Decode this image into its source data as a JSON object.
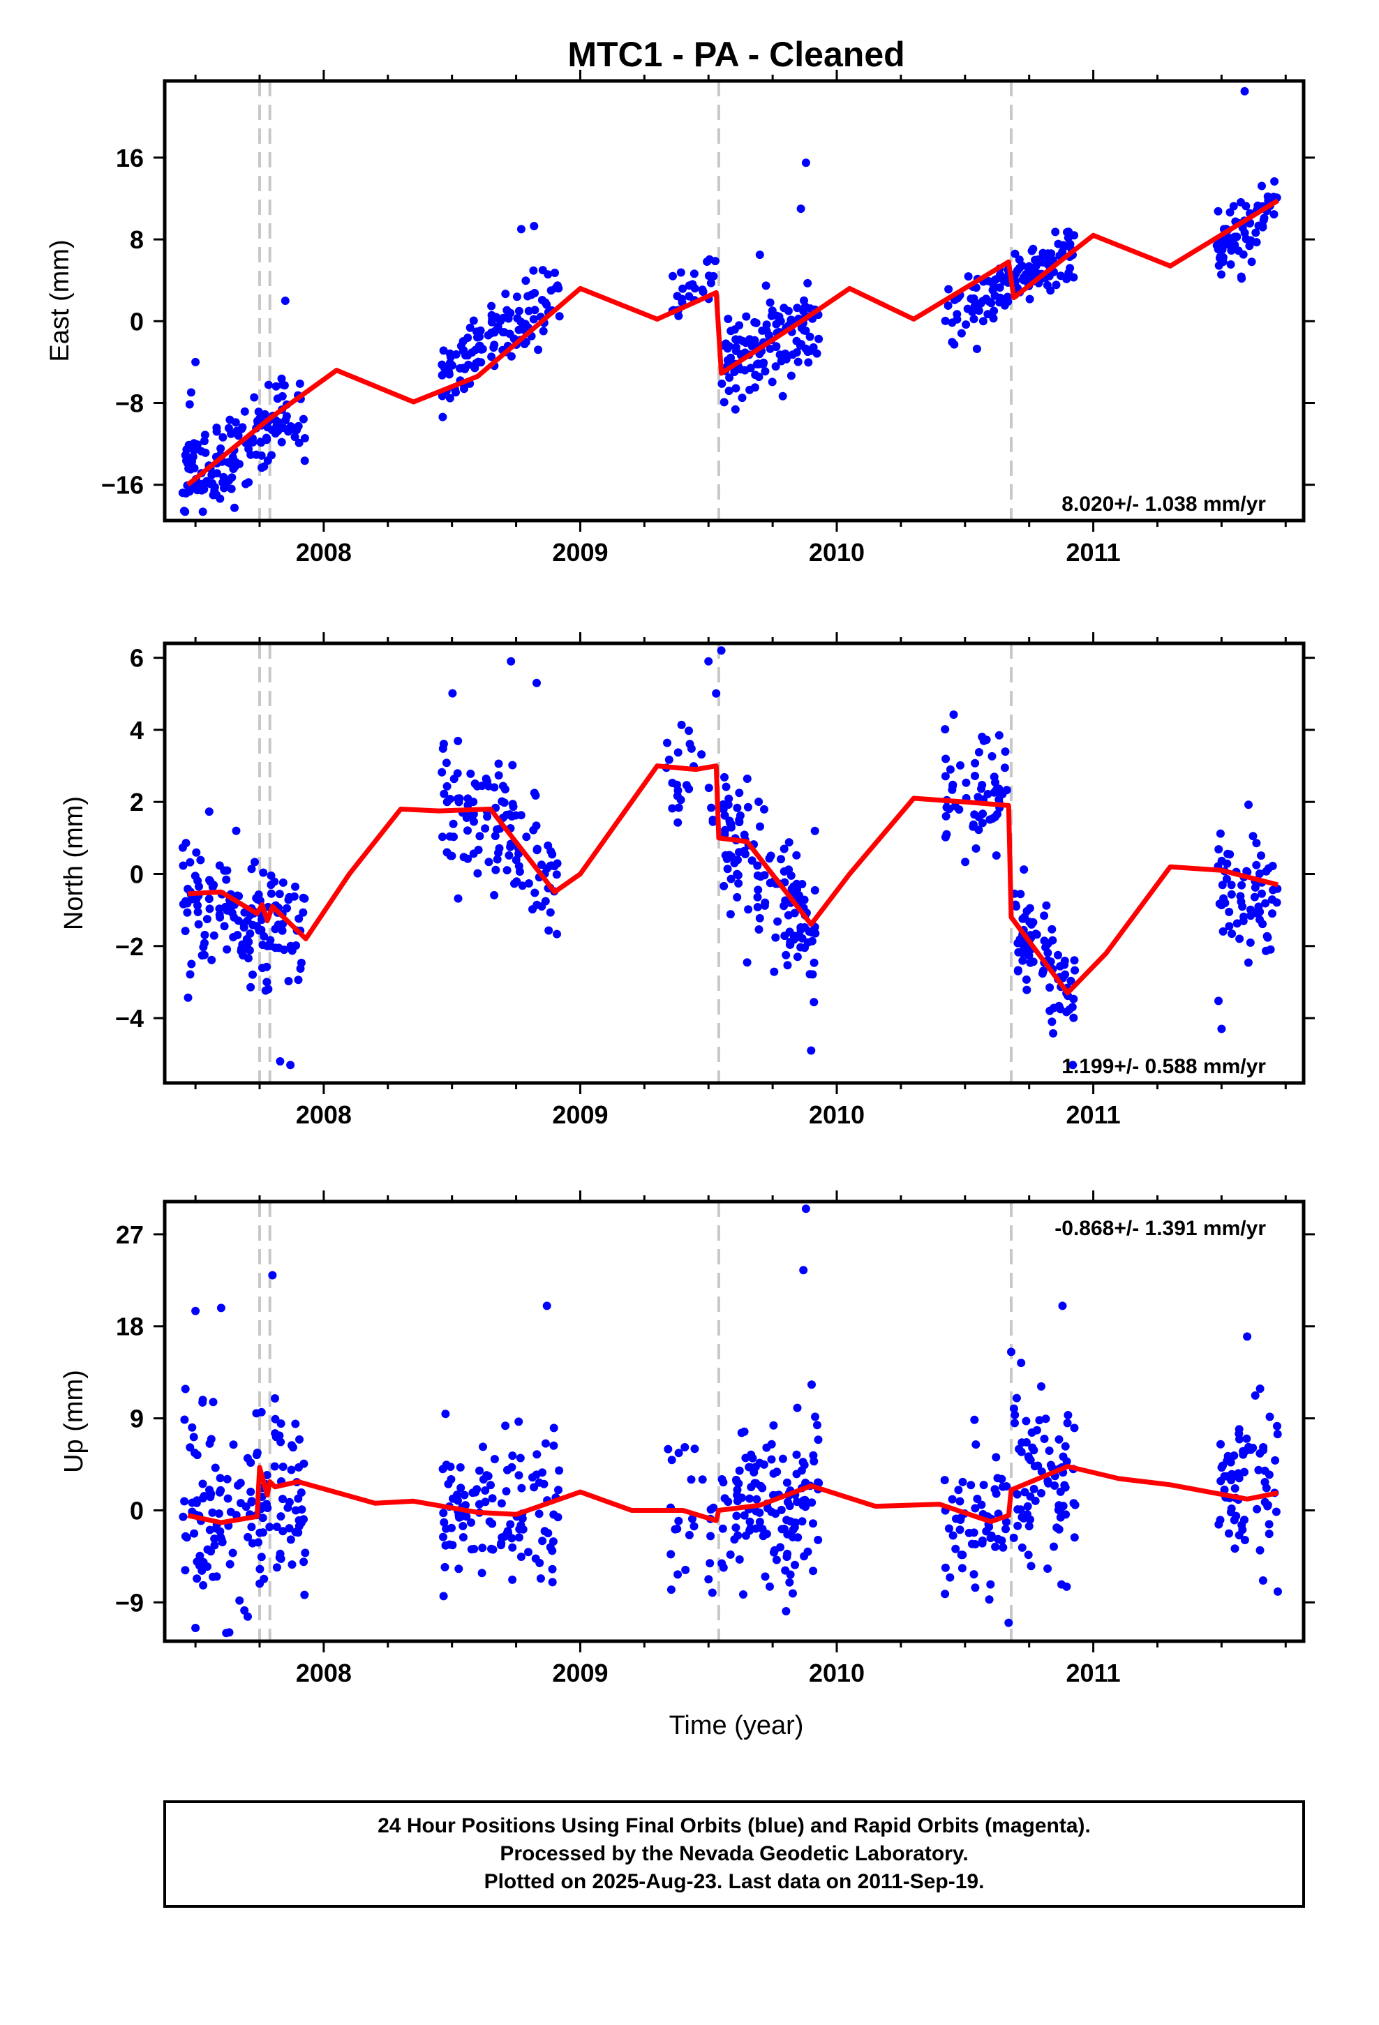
{
  "title": "MTC1  - PA - Cleaned",
  "colors": {
    "data_points": "#0000ff",
    "model_line": "#ff0000",
    "event_lines": "#c8c8c8",
    "frame": "#000000"
  },
  "x_axis_label": "Time (year)",
  "footer": {
    "line1": "24 Hour Positions Using Final Orbits (blue) and Rapid Orbits (magenta).",
    "line2": "Processed by the Nevada Geodetic Laboratory.",
    "line3": "Plotted on 2025-Aug-23. Last data on 2011-Sep-19."
  },
  "chart_data": [
    {
      "type": "scatter",
      "name": "east",
      "ylabel": "East (mm)",
      "xlim": [
        2007.38,
        2011.82
      ],
      "ylim": [
        -19.5,
        23.5
      ],
      "yticks": [
        -16,
        -8,
        0,
        8,
        16
      ],
      "ytick_labels": [
        "−16",
        "−8",
        "0",
        "8",
        "16"
      ],
      "xticks": [
        2008,
        2009,
        2010,
        2011
      ],
      "xtick_labels": [
        "2008",
        "2009",
        "2010",
        "2011"
      ],
      "rate_text": "8.020+/- 1.038 mm/yr",
      "rate_position": "bottom-right",
      "offsets": [
        2007.75,
        2007.79,
        2009.54,
        2010.68
      ],
      "model": {
        "rate": 8.02,
        "segments": [
          [
            2007.47,
            2007.75
          ],
          [
            2007.75,
            2007.79
          ],
          [
            2007.79,
            2009.54
          ],
          [
            2009.54,
            2010.68
          ],
          [
            2010.68,
            2011.72
          ]
        ],
        "samples": [
          [
            2007.47,
            -16.0
          ],
          [
            2007.79,
            -9.5
          ],
          [
            2008.05,
            -4.8
          ],
          [
            2008.35,
            -7.9
          ],
          [
            2008.6,
            -5.4
          ],
          [
            2009.0,
            3.2
          ],
          [
            2009.3,
            0.2
          ],
          [
            2009.53,
            2.8
          ],
          [
            2009.55,
            -5.1
          ],
          [
            2009.85,
            -0.2
          ],
          [
            2010.05,
            3.2
          ],
          [
            2010.3,
            0.2
          ],
          [
            2010.67,
            5.8
          ],
          [
            2010.69,
            2.3
          ],
          [
            2011.0,
            8.4
          ],
          [
            2011.3,
            5.4
          ],
          [
            2011.72,
            11.8
          ]
        ]
      },
      "point_clusters": [
        {
          "x_range": [
            2007.45,
            2007.93
          ],
          "y_center": -12.2,
          "slope": 12.5,
          "spread": 2.2,
          "count": 150,
          "seed": 11
        },
        {
          "x_range": [
            2008.46,
            2008.92
          ],
          "y_center": -1.5,
          "slope": 16.0,
          "spread": 2.0,
          "count": 120,
          "seed": 12
        },
        {
          "x_range": [
            2009.33,
            2009.53
          ],
          "y_center": 3.0,
          "slope": 5.0,
          "spread": 1.2,
          "count": 25,
          "seed": 13
        },
        {
          "x_range": [
            2009.55,
            2009.93
          ],
          "y_center": -2.0,
          "slope": 10.0,
          "spread": 2.0,
          "count": 130,
          "seed": 14
        },
        {
          "x_range": [
            2010.42,
            2010.67
          ],
          "y_center": 2.0,
          "slope": 10.0,
          "spread": 1.5,
          "count": 60,
          "seed": 15
        },
        {
          "x_range": [
            2010.69,
            2010.93
          ],
          "y_center": 5.5,
          "slope": 10.0,
          "spread": 1.3,
          "count": 80,
          "seed": 16
        },
        {
          "x_range": [
            2011.48,
            2011.72
          ],
          "y_center": 9.0,
          "slope": 18.0,
          "spread": 1.6,
          "count": 70,
          "seed": 17
        }
      ],
      "outliers": [
        [
          2007.5,
          -4.0
        ],
        [
          2007.85,
          2.0
        ],
        [
          2008.77,
          9.0
        ],
        [
          2008.82,
          9.3
        ],
        [
          2009.88,
          15.5
        ],
        [
          2009.86,
          11.0
        ],
        [
          2011.59,
          22.5
        ],
        [
          2009.7,
          6.5
        ]
      ]
    },
    {
      "type": "scatter",
      "name": "north",
      "ylabel": "North (mm)",
      "xlim": [
        2007.38,
        2011.82
      ],
      "ylim": [
        -5.8,
        6.4
      ],
      "yticks": [
        -4,
        -2,
        0,
        2,
        4,
        6
      ],
      "ytick_labels": [
        "−4",
        "−2",
        "0",
        "2",
        "4",
        "6"
      ],
      "xticks": [
        2008,
        2009,
        2010,
        2011
      ],
      "xtick_labels": [
        "2008",
        "2009",
        "2010",
        "2011"
      ],
      "rate_text": "1.199+/- 0.588 mm/yr",
      "rate_position": "bottom-right",
      "offsets": [
        2007.75,
        2007.79,
        2009.54,
        2010.68
      ],
      "model": {
        "samples": [
          [
            2007.47,
            -0.55
          ],
          [
            2007.6,
            -0.5
          ],
          [
            2007.74,
            -1.1
          ],
          [
            2007.76,
            -0.85
          ],
          [
            2007.78,
            -1.3
          ],
          [
            2007.8,
            -0.9
          ],
          [
            2007.93,
            -1.8
          ],
          [
            2008.1,
            0.0
          ],
          [
            2008.3,
            1.8
          ],
          [
            2008.45,
            1.75
          ],
          [
            2008.65,
            1.8
          ],
          [
            2008.9,
            -0.5
          ],
          [
            2009.0,
            0.0
          ],
          [
            2009.3,
            3.0
          ],
          [
            2009.45,
            2.9
          ],
          [
            2009.53,
            3.0
          ],
          [
            2009.54,
            1.0
          ],
          [
            2009.65,
            0.9
          ],
          [
            2009.9,
            -1.4
          ],
          [
            2010.05,
            0.0
          ],
          [
            2010.3,
            2.1
          ],
          [
            2010.5,
            2.0
          ],
          [
            2010.67,
            1.9
          ],
          [
            2010.68,
            -1.2
          ],
          [
            2010.9,
            -3.3
          ],
          [
            2011.05,
            -2.2
          ],
          [
            2011.3,
            0.2
          ],
          [
            2011.5,
            0.1
          ],
          [
            2011.72,
            -0.3
          ]
        ]
      },
      "point_clusters": [
        {
          "x_range": [
            2007.45,
            2007.93
          ],
          "y_center": -1.2,
          "slope": -2.5,
          "spread": 0.9,
          "count": 150,
          "seed": 21
        },
        {
          "x_range": [
            2008.46,
            2008.92
          ],
          "y_center": 1.0,
          "slope": -6.0,
          "spread": 0.9,
          "count": 120,
          "seed": 22
        },
        {
          "x_range": [
            2009.33,
            2009.53
          ],
          "y_center": 3.2,
          "slope": 0.0,
          "spread": 0.8,
          "count": 25,
          "seed": 23
        },
        {
          "x_range": [
            2009.55,
            2009.93
          ],
          "y_center": -0.3,
          "slope": -9.0,
          "spread": 1.0,
          "count": 130,
          "seed": 24
        },
        {
          "x_range": [
            2010.42,
            2010.67
          ],
          "y_center": 2.2,
          "slope": 0.0,
          "spread": 0.8,
          "count": 60,
          "seed": 25
        },
        {
          "x_range": [
            2010.69,
            2010.93
          ],
          "y_center": -2.2,
          "slope": -8.0,
          "spread": 0.8,
          "count": 80,
          "seed": 26
        },
        {
          "x_range": [
            2011.48,
            2011.72
          ],
          "y_center": -0.5,
          "slope": -3.0,
          "spread": 0.9,
          "count": 70,
          "seed": 27
        }
      ],
      "outliers": [
        [
          2008.73,
          5.9
        ],
        [
          2008.83,
          5.3
        ],
        [
          2009.55,
          6.2
        ],
        [
          2009.5,
          5.9
        ],
        [
          2007.83,
          -5.2
        ],
        [
          2007.87,
          -5.3
        ],
        [
          2010.92,
          -5.3
        ],
        [
          2011.5,
          -4.3
        ],
        [
          2009.9,
          -4.9
        ]
      ]
    },
    {
      "type": "scatter",
      "name": "up",
      "ylabel": "Up (mm)",
      "xlim": [
        2007.38,
        2011.82
      ],
      "ylim": [
        -12.8,
        30.2
      ],
      "yticks": [
        -9,
        0,
        9,
        18,
        27
      ],
      "ytick_labels": [
        "−9",
        "0",
        "9",
        "18",
        "27"
      ],
      "xticks": [
        2008,
        2009,
        2010,
        2011
      ],
      "xtick_labels": [
        "2008",
        "2009",
        "2010",
        "2011"
      ],
      "rate_text": "-0.868+/- 1.391 mm/yr",
      "rate_position": "top-right",
      "offsets": [
        2007.75,
        2007.79,
        2009.54,
        2010.68
      ],
      "model": {
        "samples": [
          [
            2007.47,
            -0.5
          ],
          [
            2007.6,
            -1.2
          ],
          [
            2007.74,
            -0.6
          ],
          [
            2007.75,
            4.2
          ],
          [
            2007.78,
            1.5
          ],
          [
            2007.79,
            2.8
          ],
          [
            2007.81,
            2.3
          ],
          [
            2007.9,
            2.8
          ],
          [
            2008.2,
            0.7
          ],
          [
            2008.35,
            0.9
          ],
          [
            2008.6,
            -0.2
          ],
          [
            2008.75,
            -0.4
          ],
          [
            2009.0,
            1.8
          ],
          [
            2009.2,
            0.0
          ],
          [
            2009.4,
            0.0
          ],
          [
            2009.53,
            -1.0
          ],
          [
            2009.54,
            0.0
          ],
          [
            2009.7,
            0.5
          ],
          [
            2009.9,
            2.4
          ],
          [
            2010.15,
            0.4
          ],
          [
            2010.4,
            0.6
          ],
          [
            2010.6,
            -1.1
          ],
          [
            2010.67,
            -0.5
          ],
          [
            2010.68,
            2.0
          ],
          [
            2010.9,
            4.3
          ],
          [
            2011.1,
            3.1
          ],
          [
            2011.3,
            2.5
          ],
          [
            2011.6,
            1.1
          ],
          [
            2011.72,
            1.7
          ]
        ]
      },
      "point_clusters": [
        {
          "x_range": [
            2007.45,
            2007.93
          ],
          "y_center": 0.5,
          "slope": 0.0,
          "spread": 4.8,
          "count": 150,
          "seed": 31
        },
        {
          "x_range": [
            2008.46,
            2008.92
          ],
          "y_center": 0.0,
          "slope": 2.0,
          "spread": 4.2,
          "count": 120,
          "seed": 32
        },
        {
          "x_range": [
            2009.33,
            2009.53
          ],
          "y_center": -1.0,
          "slope": 0.0,
          "spread": 3.8,
          "count": 25,
          "seed": 33
        },
        {
          "x_range": [
            2009.55,
            2009.93
          ],
          "y_center": 0.5,
          "slope": 6.0,
          "spread": 4.5,
          "count": 130,
          "seed": 34
        },
        {
          "x_range": [
            2010.42,
            2010.67
          ],
          "y_center": -2.0,
          "slope": 0.0,
          "spread": 4.0,
          "count": 60,
          "seed": 35
        },
        {
          "x_range": [
            2010.69,
            2010.93
          ],
          "y_center": 3.0,
          "slope": 0.0,
          "spread": 4.2,
          "count": 80,
          "seed": 36
        },
        {
          "x_range": [
            2011.48,
            2011.72
          ],
          "y_center": 1.5,
          "slope": 4.0,
          "spread": 4.2,
          "count": 70,
          "seed": 37
        }
      ],
      "outliers": [
        [
          2009.88,
          29.5
        ],
        [
          2009.87,
          23.5
        ],
        [
          2007.8,
          23.0
        ],
        [
          2007.5,
          19.5
        ],
        [
          2007.6,
          19.8
        ],
        [
          2008.87,
          20.0
        ],
        [
          2010.88,
          20.0
        ],
        [
          2010.68,
          15.5
        ],
        [
          2007.5,
          -11.5
        ],
        [
          2007.62,
          -12.0
        ],
        [
          2010.67,
          -11.0
        ],
        [
          2011.6,
          17.0
        ]
      ]
    }
  ]
}
